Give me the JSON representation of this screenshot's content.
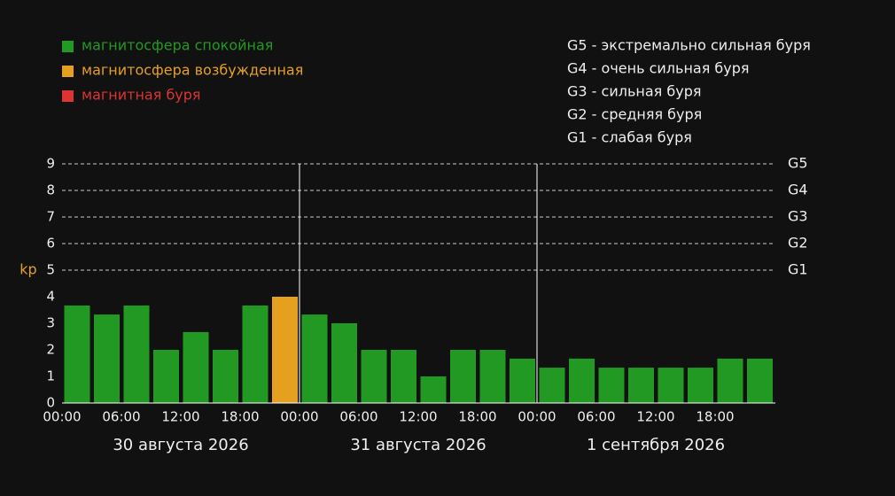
{
  "chart_data": {
    "type": "bar",
    "ylabel": "kp",
    "categories": [
      "00:00",
      null,
      "06:00",
      null,
      "12:00",
      null,
      "18:00",
      null,
      "00:00",
      null,
      "06:00",
      null,
      "12:00",
      null,
      "18:00",
      null,
      "00:00",
      null,
      "06:00",
      null,
      "12:00",
      null,
      "18:00",
      null
    ],
    "values": [
      3.67,
      3.33,
      3.67,
      2,
      2.67,
      2,
      3.67,
      4,
      3.33,
      3,
      2,
      2,
      1,
      2,
      2,
      1.67,
      1.33,
      1.67,
      1.33,
      1.33,
      1.33,
      1.33,
      1.67,
      1.67
    ],
    "colors": [
      "#229922",
      "#229922",
      "#229922",
      "#229922",
      "#229922",
      "#229922",
      "#229922",
      "#e5a020",
      "#229922",
      "#229922",
      "#229922",
      "#229922",
      "#229922",
      "#229922",
      "#229922",
      "#229922",
      "#229922",
      "#229922",
      "#229922",
      "#229922",
      "#229922",
      "#229922",
      "#229922",
      "#229922"
    ],
    "days": [
      "30 августа 2026",
      "31 августа 2026",
      "1 сентября 2026"
    ],
    "ylim": [
      0,
      9
    ],
    "yticks": [
      0,
      1,
      2,
      3,
      4,
      5,
      6,
      7,
      8,
      9
    ],
    "y2ticks": [
      {
        "value": 5,
        "label": "G1"
      },
      {
        "value": 6,
        "label": "G2"
      },
      {
        "value": 7,
        "label": "G3"
      },
      {
        "value": 8,
        "label": "G4"
      },
      {
        "value": 9,
        "label": "G5"
      }
    ],
    "legend": [
      {
        "name": "магнитосфера спокойная",
        "color": "#229922"
      },
      {
        "name": "магнитосфера возбужденная",
        "color": "#e5a020"
      },
      {
        "name": "магнитная буря",
        "color": "#dd3333"
      }
    ],
    "scale_notes": [
      "G5 - экстремально сильная буря",
      "G4 - очень сильная буря",
      "G3 - сильная буря",
      "G2 - средняя буря",
      "G1 - слабая буря"
    ]
  }
}
